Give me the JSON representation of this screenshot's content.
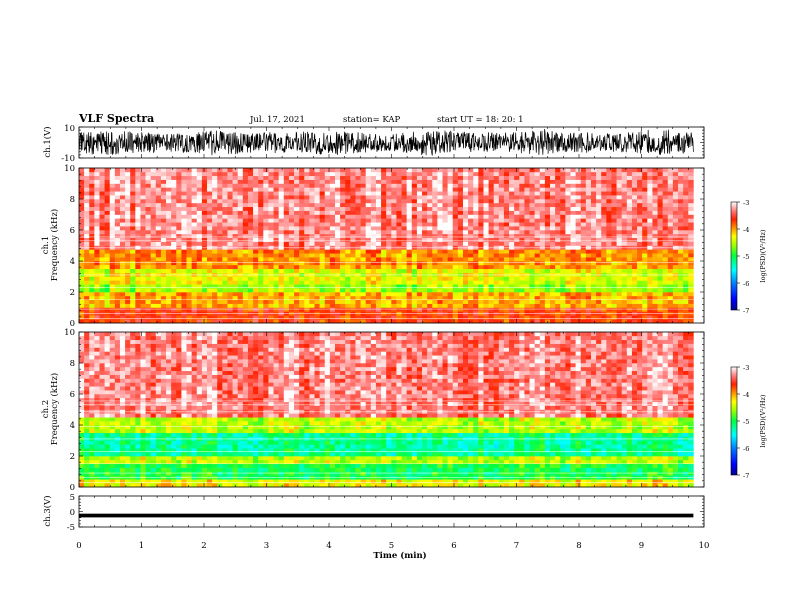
{
  "header": {
    "title": "VLF Spectra",
    "date": "Jul. 17, 2021",
    "station": "station= KAP",
    "start": "start  UT =   18: 20: 1"
  },
  "chart_data": [
    {
      "type": "line",
      "panel": "ch1-waveform",
      "ylabel": "ch.1(V)",
      "ylim": [
        -10,
        10
      ],
      "yticks": [
        "10",
        "-10"
      ],
      "xlim": [
        0,
        10
      ],
      "description_values": "dense noise waveform filling roughly -9 to 9 V over 0–9.83 min"
    },
    {
      "type": "heatmap",
      "panel": "ch1-spectrogram",
      "ylabel_top": "ch.1",
      "ylabel": "Frequency (kHz)",
      "ylim": [
        0,
        10
      ],
      "yticks": [
        "0",
        "2",
        "4",
        "6",
        "8",
        "10"
      ],
      "xlim": [
        0,
        10
      ],
      "data_end_min": 9.83,
      "bands_kHz": [
        {
          "from": 0.0,
          "to": 1.1,
          "level": -3.7
        },
        {
          "from": 1.1,
          "to": 1.9,
          "level": -4.1
        },
        {
          "from": 1.9,
          "to": 2.5,
          "level": -4.6
        },
        {
          "from": 2.5,
          "to": 3.4,
          "level": -4.4
        },
        {
          "from": 3.4,
          "to": 4.8,
          "level": -4.0
        },
        {
          "from": 4.8,
          "to": 10.0,
          "level": -3.3
        }
      ],
      "colorbar": {
        "label": "log(PSD)(V²/Hz)",
        "range": [
          -7,
          -3
        ],
        "ticks": [
          "-3",
          "-4",
          "-5",
          "-6",
          "-7"
        ]
      }
    },
    {
      "type": "heatmap",
      "panel": "ch2-spectrogram",
      "ylabel_top": "ch.2",
      "ylabel": "Frequency (kHz)",
      "ylim": [
        0,
        10
      ],
      "yticks": [
        "0",
        "2",
        "4",
        "6",
        "8",
        "10"
      ],
      "xlim": [
        0,
        10
      ],
      "data_end_min": 9.83,
      "bands_kHz": [
        {
          "from": 0.0,
          "to": 0.5,
          "level": -4.3
        },
        {
          "from": 0.5,
          "to": 1.6,
          "level": -5.0
        },
        {
          "from": 1.6,
          "to": 2.1,
          "level": -4.5
        },
        {
          "from": 2.1,
          "to": 3.4,
          "level": -5.2
        },
        {
          "from": 3.4,
          "to": 4.5,
          "level": -4.5
        },
        {
          "from": 4.5,
          "to": 10.0,
          "level": -3.3
        }
      ],
      "colorbar": {
        "label": "log(PSD)(V²/Hz)",
        "range": [
          -7,
          -3
        ],
        "ticks": [
          "-3",
          "-4",
          "-5",
          "-6",
          "-7"
        ]
      }
    },
    {
      "type": "line",
      "panel": "ch3-waveform",
      "ylabel": "ch.3(V)",
      "ylim": [
        -5,
        5
      ],
      "yticks": [
        "5",
        "0",
        "-5"
      ],
      "xlim": [
        0,
        10
      ],
      "description_values": "constant thick band near -1.3 V over 0–9.83 min"
    }
  ],
  "xaxis": {
    "label": "Time  (min)",
    "ticks": [
      "0",
      "1",
      "2",
      "3",
      "4",
      "5",
      "6",
      "7",
      "8",
      "9",
      "10"
    ]
  },
  "colors": {
    "jet": [
      "#00008f",
      "#0000ff",
      "#0080ff",
      "#00ffff",
      "#00ff40",
      "#80ff00",
      "#ffff00",
      "#ffa000",
      "#ff2000",
      "#ff7070",
      "#ffffff"
    ]
  }
}
